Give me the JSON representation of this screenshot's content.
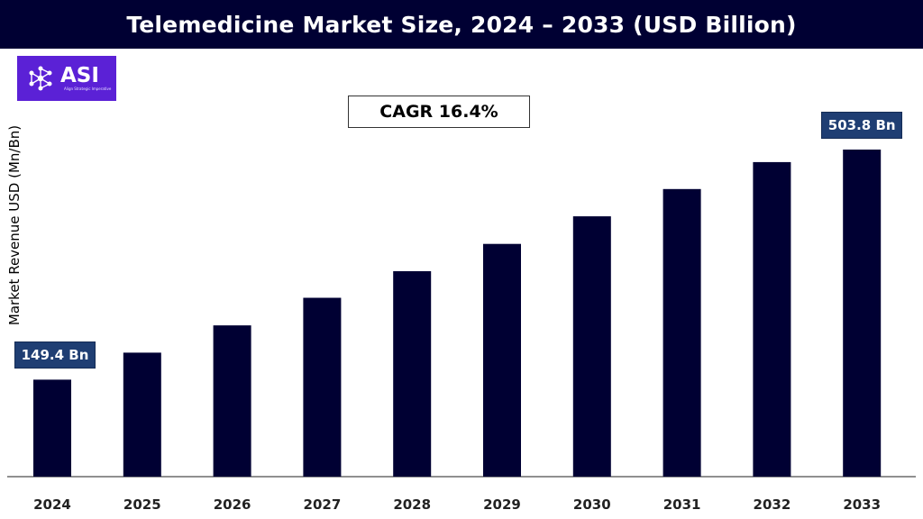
{
  "header": {
    "title": "Telemedicine Market Size, 2024 – 2033 (USD Billion)"
  },
  "logo": {
    "name": "ASI",
    "tagline": "Align Strategic Imperative"
  },
  "cagr_label": "CAGR 16.4%",
  "colors": {
    "bar": "#000033",
    "header": "#000033",
    "callout": "#1f3e73",
    "logo": "#5b21d6"
  },
  "chart_data": {
    "type": "bar",
    "title": "Telemedicine Market Size, 2024 – 2033 (USD Billion)",
    "ylabel": "Market Revenue USD (Mn/Bn)",
    "xlabel": "",
    "categories": [
      "2024",
      "2025",
      "2026",
      "2027",
      "2028",
      "2029",
      "2030",
      "2031",
      "2032",
      "2033"
    ],
    "values": [
      149.4,
      191.0,
      233.0,
      275.5,
      316.5,
      358.5,
      401.0,
      443.0,
      484.5,
      503.8
    ],
    "ylim": [
      0,
      503.8
    ],
    "grid": false,
    "legend": "none",
    "annotations": [
      {
        "category": "2024",
        "text": "149.4 Bn"
      },
      {
        "category": "2033",
        "text": "503.8 Bn"
      }
    ]
  }
}
